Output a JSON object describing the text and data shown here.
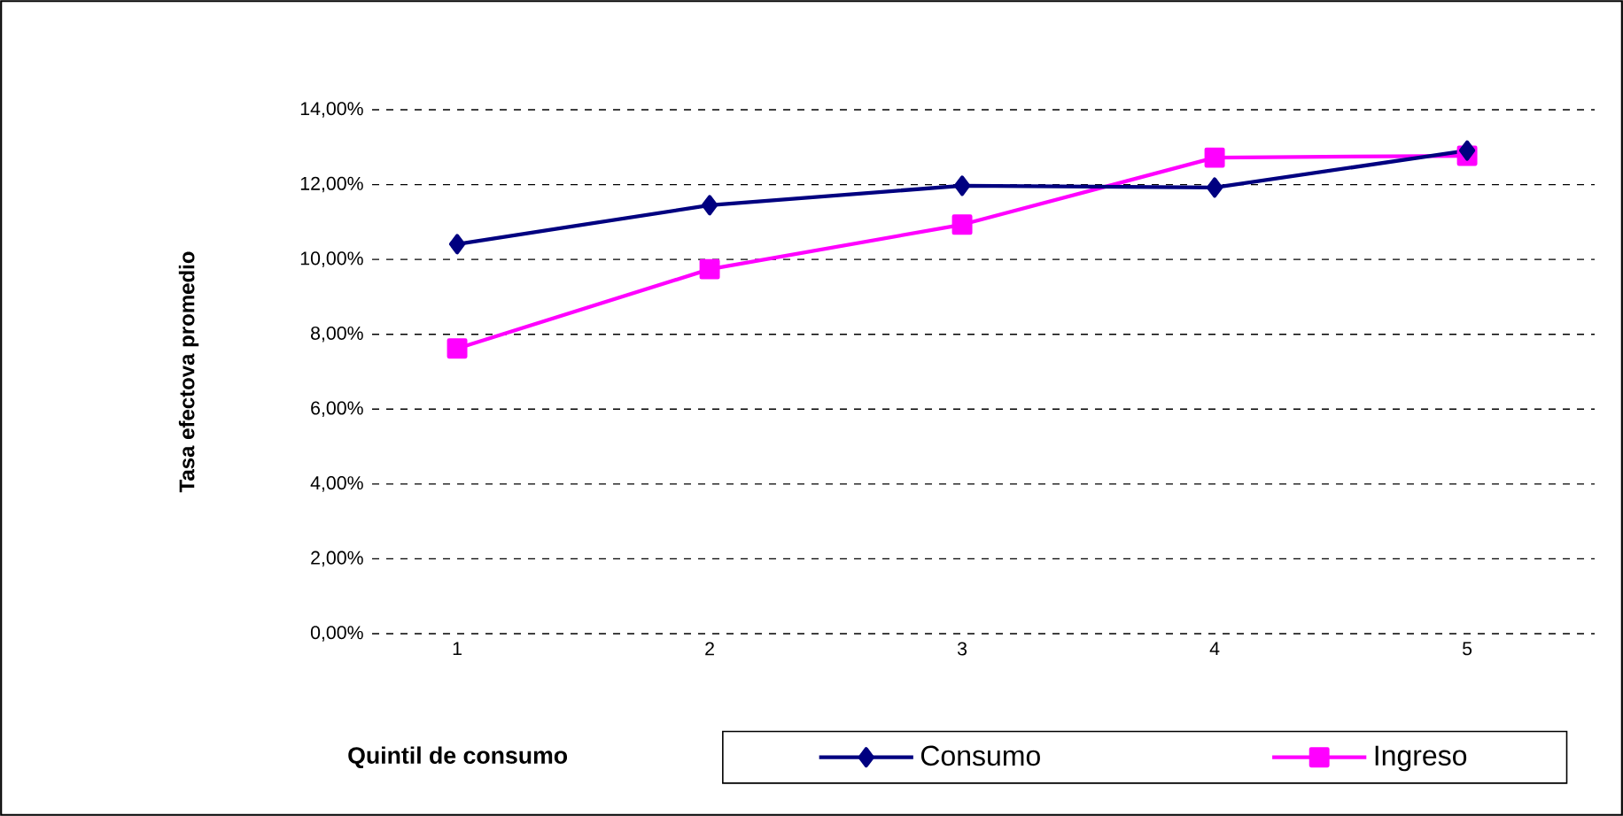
{
  "chart_data": {
    "type": "line",
    "xlabel": "Quintil de consumo",
    "ylabel": "Tasa efectova promedio",
    "categories": [
      "1",
      "2",
      "3",
      "4",
      "5"
    ],
    "series": [
      {
        "name": "Consumo",
        "color": "#000080",
        "marker": "diamond",
        "values": [
          10.41,
          11.45,
          11.97,
          11.92,
          12.91
        ]
      },
      {
        "name": "Ingreso",
        "color": "#ff00ff",
        "marker": "square",
        "values": [
          7.62,
          9.74,
          10.93,
          12.72,
          12.77
        ]
      }
    ],
    "ylim": [
      0,
      14
    ],
    "yticks": [
      {
        "value": 0,
        "label": "0,00%"
      },
      {
        "value": 2,
        "label": "2,00%"
      },
      {
        "value": 4,
        "label": "4,00%"
      },
      {
        "value": 6,
        "label": "6,00%"
      },
      {
        "value": 8,
        "label": "8,00%"
      },
      {
        "value": 10,
        "label": "10,00%"
      },
      {
        "value": 12,
        "label": "12,00%"
      },
      {
        "value": 14,
        "label": "14,00%"
      }
    ],
    "grid": "y",
    "legend": "bottom",
    "line_style": "solid"
  }
}
